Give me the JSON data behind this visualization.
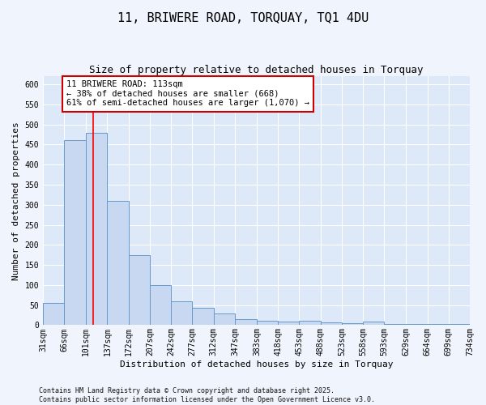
{
  "title1": "11, BRIWERE ROAD, TORQUAY, TQ1 4DU",
  "title2": "Size of property relative to detached houses in Torquay",
  "xlabel": "Distribution of detached houses by size in Torquay",
  "ylabel": "Number of detached properties",
  "bin_edges": [
    31,
    66,
    101,
    137,
    172,
    207,
    242,
    277,
    312,
    347,
    383,
    418,
    453,
    488,
    523,
    558,
    593,
    629,
    664,
    699,
    734
  ],
  "bar_heights": [
    55,
    460,
    480,
    310,
    175,
    100,
    60,
    43,
    30,
    15,
    10,
    8,
    10,
    7,
    5,
    8,
    3,
    2,
    2,
    3
  ],
  "bar_color": "#c8d8f0",
  "bar_edge_color": "#6699cc",
  "plot_bg_color": "#dde8f8",
  "fig_bg_color": "#f0f4fc",
  "grid_color": "#ffffff",
  "red_line_x": 113,
  "annotation_text": "11 BRIWERE ROAD: 113sqm\n← 38% of detached houses are smaller (668)\n61% of semi-detached houses are larger (1,070) →",
  "annotation_box_facecolor": "#ffffff",
  "annotation_box_edgecolor": "#cc0000",
  "ylim": [
    0,
    620
  ],
  "yticks": [
    0,
    50,
    100,
    150,
    200,
    250,
    300,
    350,
    400,
    450,
    500,
    550,
    600
  ],
  "footer_text": "Contains HM Land Registry data © Crown copyright and database right 2025.\nContains public sector information licensed under the Open Government Licence v3.0.",
  "tick_labels": [
    "31sqm",
    "66sqm",
    "101sqm",
    "137sqm",
    "172sqm",
    "207sqm",
    "242sqm",
    "277sqm",
    "312sqm",
    "347sqm",
    "383sqm",
    "418sqm",
    "453sqm",
    "488sqm",
    "523sqm",
    "558sqm",
    "593sqm",
    "629sqm",
    "664sqm",
    "699sqm",
    "734sqm"
  ],
  "title1_fontsize": 11,
  "title2_fontsize": 9,
  "xlabel_fontsize": 8,
  "ylabel_fontsize": 8,
  "tick_fontsize": 7,
  "annot_fontsize": 7.5,
  "footer_fontsize": 6
}
